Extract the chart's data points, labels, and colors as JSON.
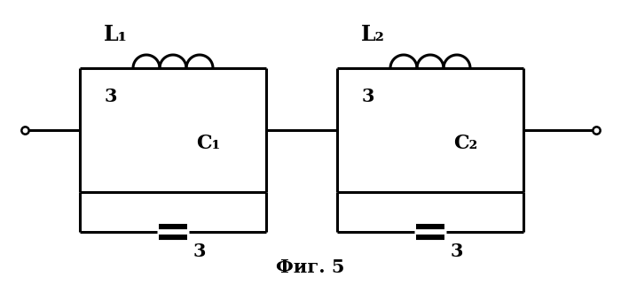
{
  "bg_color": "#ffffff",
  "line_color": "#000000",
  "line_width": 2.2,
  "fig_width": 7.0,
  "fig_height": 3.22,
  "title": "Фиг. 5",
  "title_fontsize": 15,
  "label_L1": "L₁",
  "label_L2": "L₂",
  "label_C1": "C₁",
  "label_C2": "C₂"
}
